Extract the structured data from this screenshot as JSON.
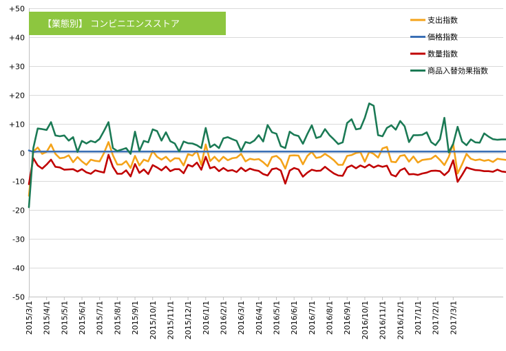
{
  "chart_data": {
    "type": "line",
    "title": "【業態別】 コンビニエンスストア",
    "title_box_color": "#8dc63f",
    "xlabel": "",
    "ylabel": "",
    "ylim": [
      -50,
      50
    ],
    "y_ticks": [
      {
        "value": 50,
        "label": "+50"
      },
      {
        "value": 40,
        "label": "+40"
      },
      {
        "value": 30,
        "label": "+30"
      },
      {
        "value": 20,
        "label": "+20"
      },
      {
        "value": 10,
        "label": "+10"
      },
      {
        "value": 0,
        "label": "0"
      },
      {
        "value": -10,
        "label": "-10"
      },
      {
        "value": -20,
        "label": "-20"
      },
      {
        "value": -30,
        "label": "-30"
      },
      {
        "value": -40,
        "label": "-40"
      },
      {
        "value": -50,
        "label": "-50"
      }
    ],
    "x_tick_labels": [
      "2015/3/1",
      "2015/4/1",
      "2015/5/1",
      "2015/6/1",
      "2015/7/1",
      "2015/8/1",
      "2015/9/1",
      "2015/10/1",
      "2015/11/1",
      "2015/12/1",
      "2016/1/1",
      "2016/2/1",
      "2016/3/1",
      "2016/4/1",
      "2016/5/1",
      "2016/6/1",
      "2016/7/1",
      "2016/8/1",
      "2016/9/1",
      "2016/10/1",
      "2016/11/1",
      "2016/12/1",
      "2017/1/1",
      "2017/2/1",
      "2017/3/1"
    ],
    "x_points_per_month": 4,
    "grid": {
      "horizontal": true,
      "vertical": false
    },
    "legend_position": "top-right",
    "series": [
      {
        "name": "支出指数",
        "color": "#f4a31a",
        "values": [
          -15.0,
          0.3,
          1.7,
          -0.5,
          0.2,
          2.8,
          -0.5,
          -2.0,
          -1.8,
          -1.0,
          -3.4,
          -1.6,
          -3.1,
          -4.3,
          -2.5,
          -2.9,
          -3.1,
          -0.2,
          3.6,
          -1.0,
          -4.2,
          -4.2,
          -3.0,
          -5.4,
          -1.2,
          -4.5,
          -2.5,
          -3.1,
          0.5,
          -1.5,
          -2.5,
          -1.5,
          -3.1,
          -2.0,
          -2.1,
          -4.5,
          -0.6,
          -1.1,
          0.5,
          -4.3,
          2.8,
          -3.0,
          -1.5,
          -3.1,
          -1.5,
          -2.7,
          -2.0,
          -1.8,
          -0.5,
          -3.1,
          -2.2,
          -2.5,
          -2.3,
          -3.4,
          -4.8,
          -1.6,
          -1.2,
          -2.5,
          -5.6,
          -1.1,
          -1.0,
          -1.1,
          -4.1,
          -1.2,
          0.2,
          -1.9,
          -1.6,
          -0.5,
          -1.5,
          -2.7,
          -4.3,
          -4.3,
          -1.2,
          -0.9,
          -0.2,
          0.1,
          -3.2,
          0.2,
          -0.5,
          -1.8,
          1.4,
          1.9,
          -3.2,
          -3.4,
          -1.2,
          -0.9,
          -3.2,
          -1.4,
          -3.5,
          -2.6,
          -2.4,
          -2.2,
          -1.1,
          -2.6,
          -4.4,
          -1.5,
          3.0,
          -7.3,
          -4.1,
          -0.5,
          -2.2,
          -2.7,
          -2.4,
          -2.9,
          -2.6,
          -3.3,
          -2.2,
          -2.4,
          -2.6
        ]
      },
      {
        "name": "価格指数",
        "color": "#3a6fb5",
        "values": [
          0.7,
          0.2,
          0.3,
          0.3,
          0.3,
          0.3,
          0.3,
          0.3,
          0.3,
          0.3,
          0.3,
          0.3,
          0.3,
          0.3,
          0.3,
          0.3,
          0.3,
          0.3,
          0.3,
          0.3,
          0.3,
          0.3,
          0.3,
          0.3,
          0.3,
          0.3,
          0.3,
          0.3,
          0.3,
          0.3,
          0.3,
          0.3,
          0.3,
          0.3,
          0.3,
          0.3,
          0.3,
          0.3,
          0.3,
          0.3,
          0.3,
          0.3,
          0.3,
          0.3,
          0.3,
          0.3,
          0.3,
          0.3,
          0.3,
          0.3,
          0.3,
          0.3,
          0.3,
          0.3,
          0.3,
          0.3,
          0.3,
          0.3,
          0.3,
          0.3,
          0.3,
          0.3,
          0.3,
          0.3,
          0.3,
          0.3,
          0.3,
          0.3,
          0.3,
          0.3,
          0.3,
          0.3,
          0.3,
          0.3,
          0.3,
          0.3,
          0.3,
          0.3,
          0.3,
          0.3,
          0.3,
          0.3,
          0.3,
          0.3,
          0.3,
          0.3,
          0.3,
          0.3,
          0.3,
          0.3,
          0.3,
          0.3,
          0.3,
          0.3,
          0.3,
          0.3,
          0.3,
          0.3,
          0.3,
          0.3,
          0.3,
          0.3,
          0.3,
          0.3,
          0.3,
          0.3,
          0.3,
          0.3,
          0.3
        ]
      },
      {
        "name": "数量指数",
        "color": "#c00000",
        "values": [
          -11.0,
          -2.0,
          -4.5,
          -5.6,
          -4.2,
          -2.5,
          -5.0,
          -5.2,
          -6.0,
          -5.9,
          -5.8,
          -6.6,
          -5.8,
          -6.9,
          -7.4,
          -6.2,
          -6.6,
          -7.0,
          -0.8,
          -5.0,
          -7.4,
          -7.4,
          -6.2,
          -8.3,
          -4.0,
          -7.1,
          -5.9,
          -7.5,
          -4.4,
          -5.2,
          -6.2,
          -4.9,
          -6.5,
          -5.8,
          -5.8,
          -7.2,
          -4.3,
          -4.9,
          -3.5,
          -6.0,
          -1.5,
          -5.5,
          -5.0,
          -6.5,
          -5.4,
          -6.4,
          -6.1,
          -6.8,
          -5.3,
          -6.5,
          -5.6,
          -6.1,
          -6.4,
          -7.5,
          -8.0,
          -5.8,
          -5.5,
          -6.3,
          -10.8,
          -6.3,
          -5.4,
          -5.9,
          -8.4,
          -7.0,
          -6.0,
          -6.4,
          -6.3,
          -5.0,
          -6.2,
          -7.3,
          -8.0,
          -8.1,
          -5.2,
          -4.5,
          -5.5,
          -4.5,
          -5.2,
          -4.2,
          -5.2,
          -4.5,
          -5.0,
          -4.6,
          -7.7,
          -8.3,
          -6.2,
          -5.5,
          -7.6,
          -7.5,
          -7.8,
          -7.3,
          -7.0,
          -6.4,
          -6.3,
          -6.5,
          -7.9,
          -6.5,
          -2.7,
          -10.2,
          -7.8,
          -5.2,
          -5.7,
          -6.1,
          -6.2,
          -6.5,
          -6.5,
          -6.7,
          -6.0,
          -6.6,
          -6.8
        ]
      },
      {
        "name": "商品入替効果指数",
        "color": "#1b7a55",
        "values": [
          -19.0,
          1.5,
          8.3,
          8.1,
          7.8,
          10.5,
          5.9,
          5.6,
          5.9,
          4.1,
          5.3,
          0.2,
          4.0,
          3.1,
          4.0,
          3.5,
          4.7,
          7.5,
          10.5,
          1.5,
          0.5,
          1.0,
          1.5,
          -0.5,
          7.2,
          0.5,
          4.0,
          3.5,
          8.0,
          7.4,
          4.1,
          7.0,
          3.9,
          3.1,
          0.3,
          3.8,
          3.2,
          3.1,
          2.5,
          1.5,
          8.5,
          1.8,
          2.8,
          1.5,
          4.9,
          5.3,
          4.6,
          4.0,
          0.5,
          3.6,
          3.2,
          4.1,
          6.0,
          3.8,
          9.5,
          7.0,
          6.5,
          2.2,
          1.5,
          7.2,
          6.1,
          5.7,
          3.0,
          6.4,
          9.4,
          5.0,
          5.5,
          8.1,
          6.0,
          4.5,
          2.9,
          3.5,
          10.2,
          11.5,
          8.0,
          8.3,
          12.0,
          17.0,
          16.2,
          6.0,
          5.6,
          8.5,
          9.4,
          7.9,
          10.9,
          9.1,
          3.6,
          6.0,
          6.0,
          6.1,
          7.0,
          3.6,
          2.5,
          4.6,
          12.0,
          0.0,
          3.0,
          8.9,
          3.8,
          2.5,
          4.5,
          3.5,
          3.4,
          6.6,
          5.5,
          4.6,
          4.4,
          4.5,
          4.5
        ]
      }
    ]
  }
}
